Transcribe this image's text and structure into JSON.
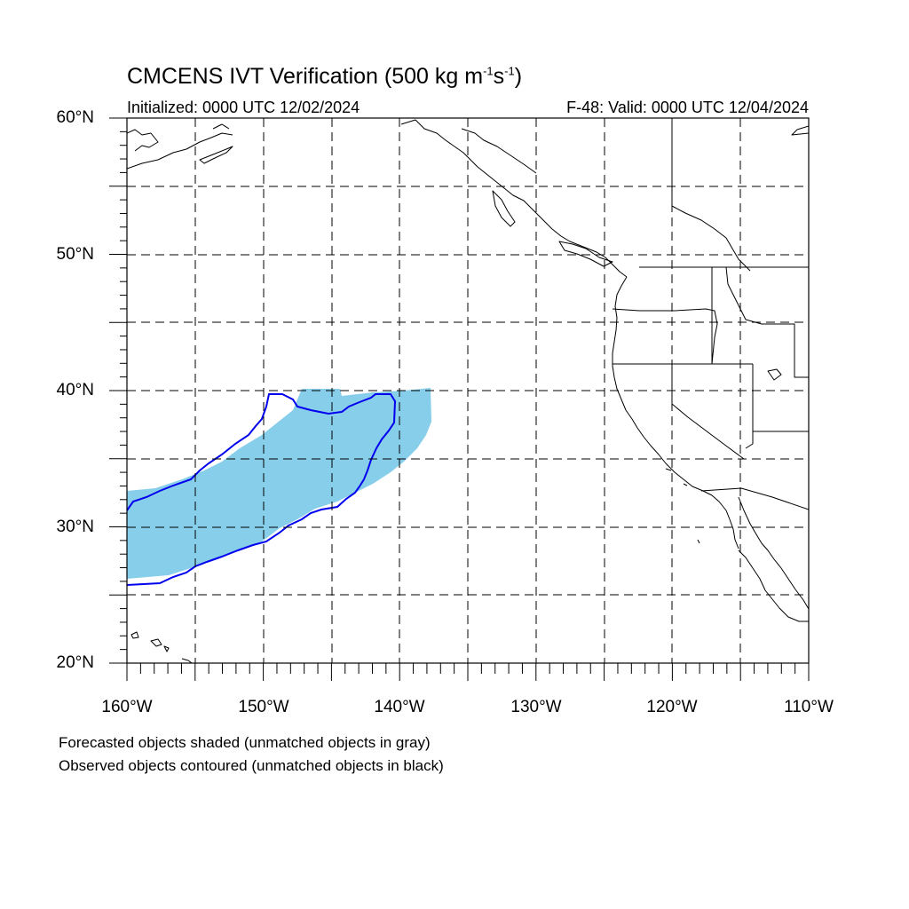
{
  "title_main": "CMCENS IVT Verification (500 kg m",
  "title_sup1": "-1",
  "title_mid": "s",
  "title_sup2": "-1",
  "title_end": ")",
  "subtitle_left": "Initialized: 0000 UTC 12/02/2024",
  "subtitle_right": "F-48: Valid: 0000 UTC 12/04/2024",
  "lat_labels": [
    "60°N",
    "50°N",
    "40°N",
    "30°N",
    "20°N"
  ],
  "lon_labels": [
    "160°W",
    "150°W",
    "140°W",
    "130°W",
    "120°W",
    "110°W"
  ],
  "footnotes": [
    "Forecasted objects shaded (unmatched objects in gray)",
    "Observed objects contoured (unmatched objects in black)"
  ],
  "colors": {
    "forecast_fill": "#87ceeb",
    "observed_contour": "#0000ee",
    "coastline": "#000000",
    "grid": "#000000"
  },
  "map_extent": {
    "lon_min": -160,
    "lon_max": -110,
    "lat_min": 20,
    "lat_max": 60
  }
}
